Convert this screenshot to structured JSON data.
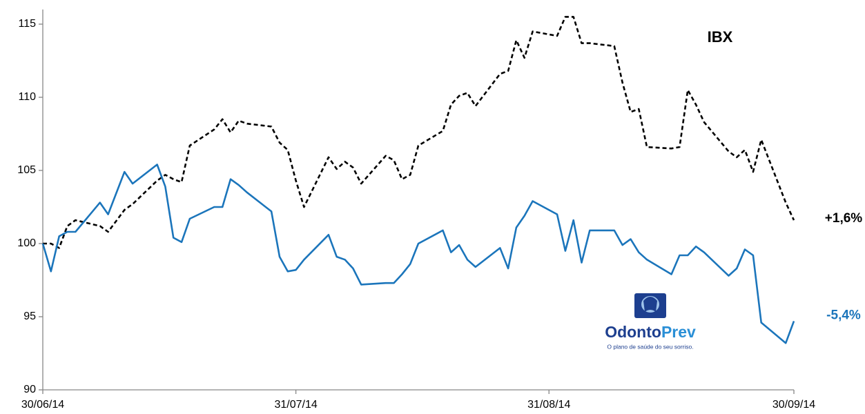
{
  "chart_data": {
    "type": "line",
    "x": [
      "2014-06-30",
      "2014-07-01",
      "2014-07-02",
      "2014-07-03",
      "2014-07-04",
      "2014-07-07",
      "2014-07-08",
      "2014-07-10",
      "2014-07-11",
      "2014-07-14",
      "2014-07-15",
      "2014-07-16",
      "2014-07-17",
      "2014-07-18",
      "2014-07-21",
      "2014-07-22",
      "2014-07-23",
      "2014-07-24",
      "2014-07-25",
      "2014-07-28",
      "2014-07-29",
      "2014-07-30",
      "2014-07-31",
      "2014-08-01",
      "2014-08-04",
      "2014-08-05",
      "2014-08-06",
      "2014-08-07",
      "2014-08-08",
      "2014-08-11",
      "2014-08-12",
      "2014-08-13",
      "2014-08-14",
      "2014-08-15",
      "2014-08-18",
      "2014-08-19",
      "2014-08-20",
      "2014-08-21",
      "2014-08-22",
      "2014-08-25",
      "2014-08-26",
      "2014-08-27",
      "2014-08-28",
      "2014-08-29",
      "2014-09-01",
      "2014-09-02",
      "2014-09-03",
      "2014-09-04",
      "2014-09-05",
      "2014-09-08",
      "2014-09-09",
      "2014-09-10",
      "2014-09-11",
      "2014-09-12",
      "2014-09-15",
      "2014-09-16",
      "2014-09-17",
      "2014-09-18",
      "2014-09-19",
      "2014-09-22",
      "2014-09-23",
      "2014-09-24",
      "2014-09-25",
      "2014-09-26",
      "2014-09-29",
      "2014-09-30"
    ],
    "series": [
      {
        "name": "IBX",
        "color": "#000000",
        "dashed": true,
        "end_label": "+1,6%",
        "values": [
          100,
          100,
          99.7,
          101.2,
          101.6,
          101.2,
          100.8,
          102.3,
          102.7,
          104.3,
          104.7,
          104.4,
          104.2,
          106.7,
          107.8,
          108.5,
          107.6,
          108.4,
          108.2,
          108.0,
          106.9,
          106.4,
          104.3,
          102.5,
          105.9,
          105.1,
          105.6,
          105.2,
          104.1,
          106.0,
          105.7,
          104.4,
          104.7,
          106.7,
          107.7,
          109.5,
          110.1,
          110.3,
          109.4,
          111.6,
          111.8,
          113.9,
          112.7,
          114.5,
          114.2,
          115.5,
          115.5,
          113.7,
          113.7,
          113.5,
          111.0,
          109.0,
          109.2,
          106.6,
          106.5,
          106.6,
          110.5,
          109.5,
          108.3,
          106.3,
          105.9,
          106.4,
          104.9,
          107.1,
          102.8,
          101.6
        ]
      },
      {
        "color": "#1b75bb",
        "dashed": false,
        "end_label": "-5,4%",
        "values": [
          100,
          98.1,
          100.5,
          100.8,
          100.8,
          102.8,
          102.0,
          104.9,
          104.1,
          105.4,
          103.9,
          100.4,
          100.1,
          101.7,
          102.5,
          102.5,
          104.4,
          104.0,
          103.5,
          102.2,
          99.1,
          98.1,
          98.2,
          98.9,
          100.6,
          99.1,
          98.9,
          98.3,
          97.2,
          97.3,
          97.3,
          97.9,
          98.6,
          100.0,
          100.9,
          99.4,
          99.9,
          98.9,
          98.4,
          99.7,
          98.3,
          101.1,
          101.9,
          102.9,
          102.0,
          99.5,
          101.6,
          98.7,
          100.9,
          100.9,
          99.9,
          100.3,
          99.4,
          98.9,
          97.9,
          99.2,
          99.2,
          99.8,
          99.4,
          97.8,
          98.3,
          99.6,
          99.2,
          94.6,
          93.2,
          94.7
        ]
      }
    ],
    "xlim": [
      "2014-06-30",
      "2014-09-30"
    ],
    "xticks": [
      {
        "value": "2014-06-30",
        "label": "30/06/14"
      },
      {
        "value": "2014-07-31",
        "label": "31/07/14"
      },
      {
        "value": "2014-08-31",
        "label": "31/08/14"
      },
      {
        "value": "2014-09-30",
        "label": "30/09/14"
      }
    ],
    "ylim": [
      90,
      116
    ],
    "yticks": [
      90,
      95,
      100,
      105,
      110,
      115
    ],
    "grid": false,
    "logo_parts": [
      "Odonto",
      "Prev"
    ],
    "logo_tagline": "O plano de saúde do seu sorriso."
  }
}
